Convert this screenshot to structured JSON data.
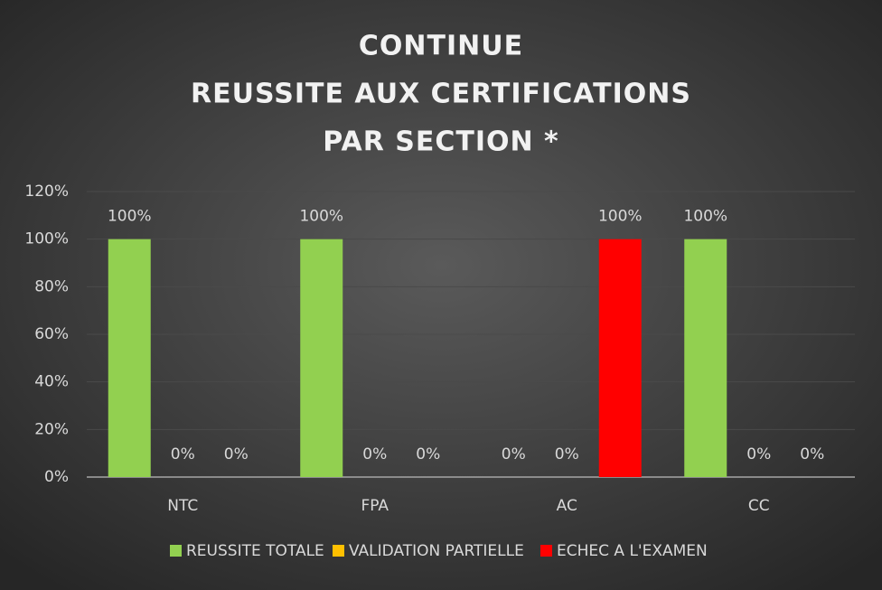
{
  "chart_data": {
    "type": "bar",
    "title": [
      "CONTINUE",
      "REUSSITE AUX CERTIFICATIONS",
      "PAR SECTION *"
    ],
    "categories": [
      "NTC",
      "FPA",
      "AC",
      "CC"
    ],
    "series": [
      {
        "name": "REUSSITE TOTALE",
        "color": "#92d050",
        "values": [
          100,
          100,
          0,
          100
        ],
        "value_labels": [
          "100%",
          "100%",
          "0%",
          "100%"
        ]
      },
      {
        "name": "VALIDATION PARTIELLE",
        "color": "#ffc000",
        "values": [
          0,
          0,
          0,
          0
        ],
        "value_labels": [
          "0%",
          "0%",
          "0%",
          "0%"
        ]
      },
      {
        "name": "ECHEC A L'EXAMEN",
        "color": "#ff0000",
        "values": [
          0,
          0,
          100,
          0
        ],
        "value_labels": [
          "0%",
          "0%",
          "100%",
          "0%"
        ]
      }
    ],
    "ylim": [
      0,
      120
    ],
    "yticks": [
      {
        "value": 0,
        "label": "0%"
      },
      {
        "value": 20,
        "label": "20%"
      },
      {
        "value": 40,
        "label": "40%"
      },
      {
        "value": 60,
        "label": "60%"
      },
      {
        "value": 80,
        "label": "80%"
      },
      {
        "value": 100,
        "label": "100%"
      },
      {
        "value": 120,
        "label": "120%"
      }
    ],
    "grid": true,
    "legend": "bottom"
  }
}
